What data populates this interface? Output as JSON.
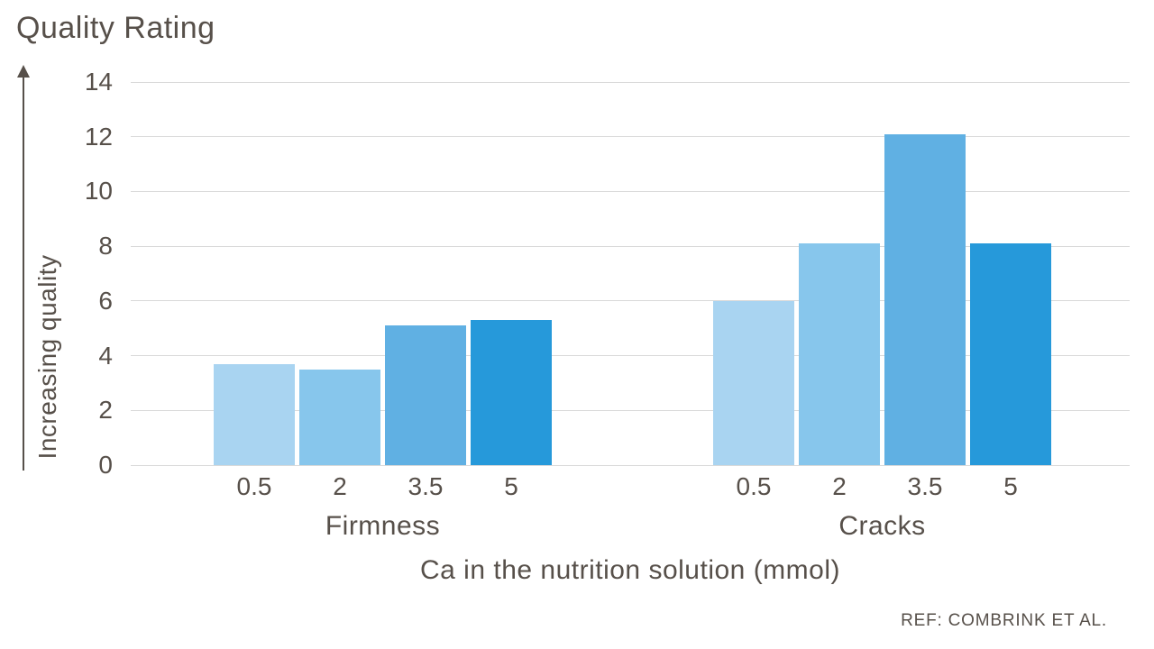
{
  "chart_data": {
    "type": "bar",
    "title": "Quality Rating",
    "ylabel": "Increasing quality",
    "xlabel": "Ca in the nutrition solution (mmol)",
    "reference": "REF: COMBRINK ET AL.",
    "ylim": [
      0,
      14
    ],
    "yticks": [
      0,
      2,
      4,
      6,
      8,
      10,
      12,
      14
    ],
    "categories": [
      "0.5",
      "2",
      "3.5",
      "5"
    ],
    "series": [
      {
        "name": "Firmness",
        "values": [
          3.7,
          3.5,
          5.1,
          5.3
        ]
      },
      {
        "name": "Cracks",
        "values": [
          6.0,
          8.1,
          12.1,
          8.1
        ]
      }
    ],
    "bar_colors": [
      "#a9d4f1",
      "#87c6ec",
      "#60b0e3",
      "#2699da"
    ],
    "grid_color": "#d9d9d9",
    "text_color": "#57504a",
    "legend": "none",
    "grid": "horizontal"
  }
}
